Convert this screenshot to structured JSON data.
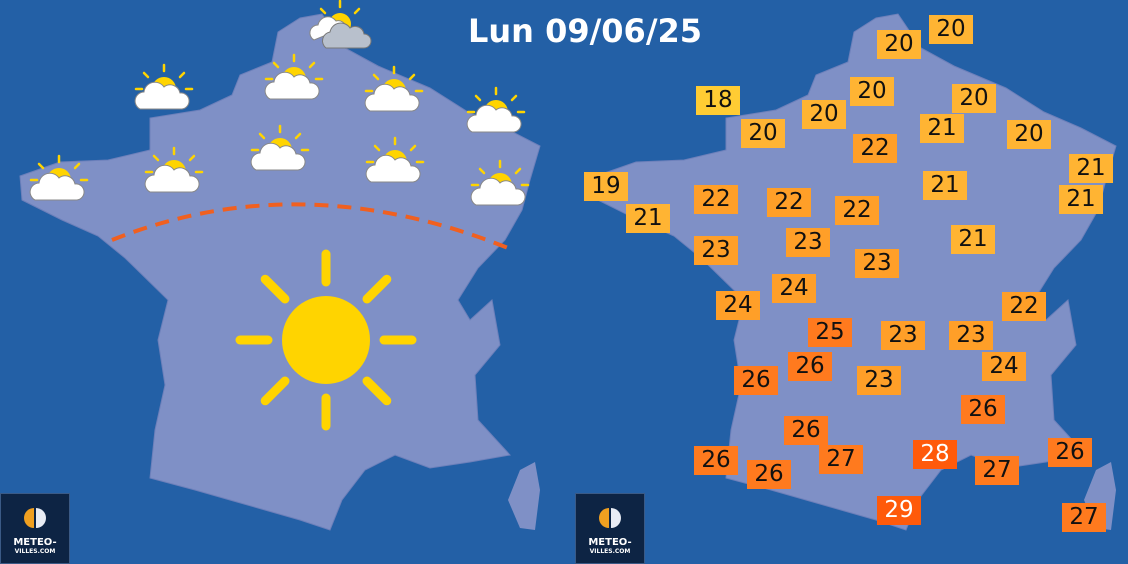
{
  "title": "Lun 09/06/25",
  "logo": {
    "line1": "METEO-",
    "line2": "VILLES.COM"
  },
  "colors": {
    "sea": "#2360a6",
    "land": "#7f90c6",
    "t18": "#ffcc33",
    "t19_21": "#ffb433",
    "t22_24": "#ff9f28",
    "t25_27": "#ff7a1e",
    "t28_29": "#ff5a0a",
    "front_line": "#f06020",
    "sun": "#ffd400"
  },
  "left_map": {
    "big_icon": "sun-icon",
    "front": "dashed-boundary-line",
    "icons": [
      "cloudy-sun-icon",
      "sun-cloud-icon",
      "sun-cloud-icon",
      "sun-cloud-icon",
      "sun-cloud-icon",
      "sun-cloud-icon",
      "sun-cloud-icon",
      "sun-cloud-icon",
      "sun-cloud-icon",
      "sun-cloud-icon"
    ]
  },
  "temperatures": [
    "20",
    "20",
    "18",
    "20",
    "20",
    "20",
    "20",
    "21",
    "20",
    "22",
    "21",
    "19",
    "21",
    "21",
    "22",
    "22",
    "22",
    "21",
    "23",
    "21",
    "23",
    "23",
    "24",
    "24",
    "22",
    "25",
    "23",
    "23",
    "26",
    "24",
    "26",
    "23",
    "26",
    "26",
    "28",
    "26",
    "26",
    "27",
    "27",
    "26",
    "29",
    "27"
  ]
}
